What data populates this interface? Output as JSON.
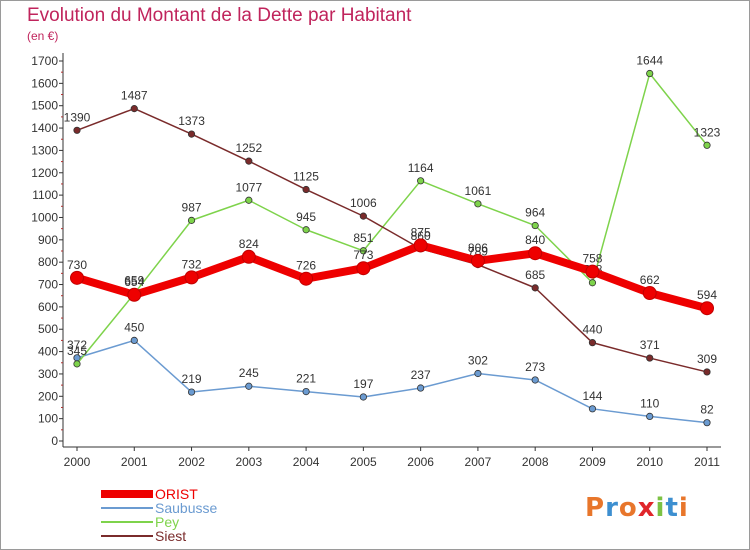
{
  "header": {
    "title": "Evolution du Montant de la Dette par Habitant",
    "subtitle": "(en €)"
  },
  "logo": {
    "text": "Proxiti",
    "colors": [
      "#e8762b",
      "#3d8fd0",
      "#e8762b",
      "#e0262b",
      "#7cc243",
      "#3d8fd0",
      "#e8762b"
    ]
  },
  "chart_data": {
    "type": "line",
    "title": "Evolution du Montant de la Dette par Habitant",
    "subtitle": "(en €)",
    "xlabel": "",
    "ylabel": "",
    "categories": [
      "2000",
      "2001",
      "2002",
      "2003",
      "2004",
      "2005",
      "2006",
      "2007",
      "2008",
      "2009",
      "2010",
      "2011"
    ],
    "ylim": [
      0,
      1700
    ],
    "yticks": [
      0,
      100,
      200,
      300,
      400,
      500,
      600,
      700,
      800,
      900,
      1000,
      1100,
      1200,
      1300,
      1400,
      1500,
      1600,
      1700
    ],
    "grid": false,
    "legend_position": "bottom-left",
    "series": [
      {
        "name": "ORIST",
        "color": "#ee0000",
        "thick": true,
        "values": [
          730,
          654,
          732,
          824,
          726,
          773,
          875,
          806,
          840,
          758,
          662,
          594
        ]
      },
      {
        "name": "Saubusse",
        "color": "#6b9bd1",
        "thick": false,
        "values": [
          372,
          450,
          219,
          245,
          221,
          197,
          237,
          302,
          273,
          144,
          110,
          82
        ]
      },
      {
        "name": "Pey",
        "color": "#7ed34b",
        "thick": false,
        "values": [
          345,
          659,
          987,
          1077,
          945,
          851,
          1164,
          1061,
          964,
          708,
          1644,
          1323
        ]
      },
      {
        "name": "Siest",
        "color": "#7a2b2b",
        "thick": false,
        "values": [
          1390,
          1487,
          1373,
          1252,
          1125,
          1006,
          860,
          789,
          685,
          440,
          371,
          309
        ]
      }
    ]
  }
}
